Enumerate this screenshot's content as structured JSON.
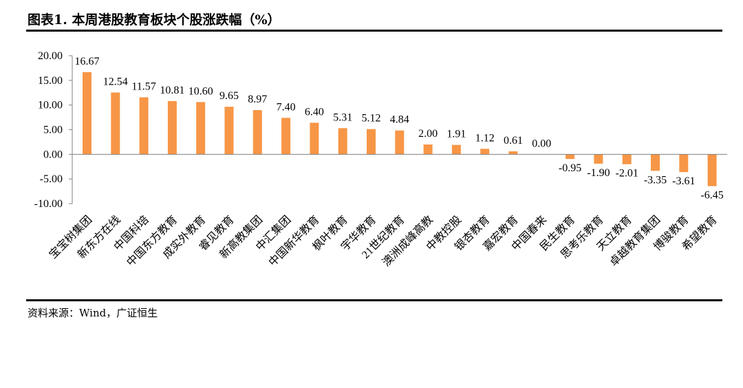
{
  "title": "图表1. 本周港股教育板块个股涨跌幅（%）",
  "source": "资料来源：Wind，广证恒生",
  "colors": {
    "bar": "#F79646",
    "axis": "#7f7f7f",
    "text": "#000000"
  },
  "chart_data": {
    "type": "bar",
    "title": "图表1. 本周港股教育板块个股涨跌幅（%）",
    "xlabel": "",
    "ylabel": "",
    "ylim": [
      -10,
      20
    ],
    "yticks": [
      "20.00",
      "15.00",
      "10.00",
      "5.00",
      "0.00",
      "-5.00",
      "-10.00"
    ],
    "grid": false,
    "legend": "none",
    "categories": [
      "宝宝树集团",
      "新东方在线",
      "中国科培",
      "中国东方教育",
      "成实外教育",
      "睿见教育",
      "新高教集团",
      "中汇集团",
      "中国新华教育",
      "枫叶教育",
      "宇华教育",
      "21世纪教育",
      "澳洲成峰高教",
      "中教控股",
      "银杏教育",
      "嘉宏教育",
      "中国春来",
      "民生教育",
      "思考乐教育",
      "天立教育",
      "卓越教育集团",
      "博骏教育",
      "希望教育"
    ],
    "values": [
      16.67,
      12.54,
      11.57,
      10.81,
      10.6,
      9.65,
      8.97,
      7.4,
      6.4,
      5.31,
      5.12,
      4.84,
      2.0,
      1.91,
      1.12,
      0.61,
      0.0,
      -0.95,
      -1.9,
      -2.01,
      -3.35,
      -3.61,
      -6.45
    ],
    "data_labels": [
      "16.67",
      "12.54",
      "11.57",
      "10.81",
      "10.60",
      "9.65",
      "8.97",
      "7.40",
      "6.40",
      "5.31",
      "5.12",
      "4.84",
      "2.00",
      "1.91",
      "1.12",
      "0.61",
      "0.00",
      "-0.95",
      "-1.90",
      "-2.01",
      "-3.35",
      "-3.61",
      "-6.45"
    ]
  }
}
